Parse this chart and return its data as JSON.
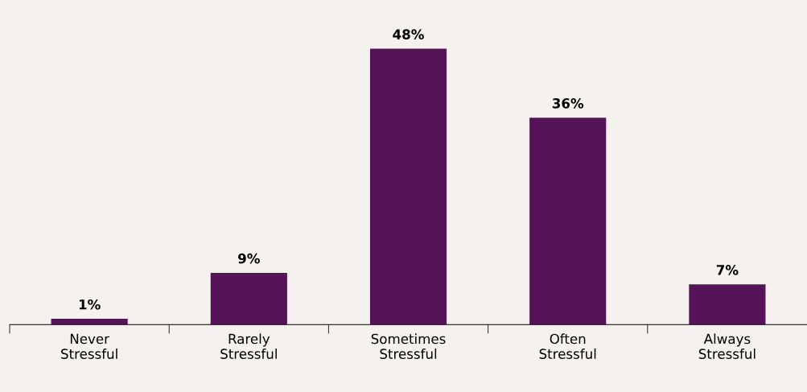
{
  "chart_data": {
    "type": "bar",
    "categories": [
      "Never\nStressful",
      "Rarely\nStressful",
      "Sometimes\nStressful",
      "Often\nStressful",
      "Always\nStressful"
    ],
    "values": [
      1,
      9,
      48,
      36,
      7
    ],
    "color": "#561458",
    "value_labels": [
      "1%",
      "9%",
      "48%",
      "36%",
      "7%"
    ],
    "grid": false,
    "legend": false
  }
}
